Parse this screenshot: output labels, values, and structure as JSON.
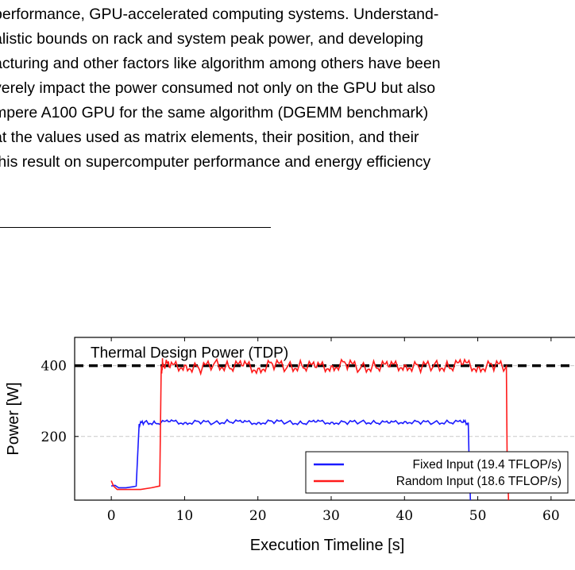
{
  "paper": {
    "lines": [
      "performance, GPU-accelerated computing systems. Understand-",
      "alistic bounds on rack and system peak power, and developing",
      "acturing and other factors like algorithm among others have been",
      "verely impact the power consumed not only on the GPU but also",
      "mpere A100 GPU for the same algorithm (DGEMM benchmark)",
      "at the values used as matrix elements, their position, and their",
      "this result on supercomputer performance and energy efficiency"
    ]
  },
  "chart_data": {
    "type": "line",
    "xlabel": "Execution Timeline [s]",
    "ylabel": "Power [W]",
    "xlim": [
      -5,
      65
    ],
    "ylim": [
      20,
      480
    ],
    "xticks": [
      0,
      10,
      20,
      30,
      40,
      50,
      60
    ],
    "yticks": [
      200,
      400
    ],
    "grid": "horizontal dashed at y ticks",
    "legend_position": "bottom-right",
    "annotations": [
      {
        "text": "Thermal Design Power (TDP)",
        "y": 400,
        "style": "black dashed line"
      }
    ],
    "series": [
      {
        "name": "Fixed Input (19.4 TFLOP/s)",
        "color": "#1a1aff",
        "x": [
          0.0,
          0.5,
          1.0,
          2.0,
          3.0,
          3.4,
          3.8,
          4.5,
          6.0,
          8.0,
          10.0,
          12.0,
          14.0,
          16.0,
          18.0,
          20.0,
          22.0,
          24.0,
          26.0,
          28.0,
          30.0,
          32.0,
          34.0,
          36.0,
          38.0,
          40.0,
          42.0,
          44.0,
          46.0,
          48.0,
          48.7,
          48.8,
          49.0
        ],
        "y": [
          60,
          62,
          55,
          55,
          58,
          60,
          235,
          240,
          238,
          242,
          239,
          241,
          238,
          243,
          240,
          239,
          242,
          240,
          238,
          241,
          240,
          239,
          241,
          240,
          238,
          242,
          240,
          239,
          241,
          240,
          239,
          150,
          20
        ]
      },
      {
        "name": "Random Input (18.6 TFLOP/s)",
        "color": "#ff1a1a",
        "x": [
          0.0,
          0.3,
          0.8,
          2.0,
          4.0,
          5.5,
          6.6,
          6.8,
          7.0,
          8.0,
          10.0,
          12.0,
          14.0,
          16.0,
          18.0,
          20.0,
          22.0,
          24.0,
          26.0,
          28.0,
          30.0,
          32.0,
          34.0,
          36.0,
          38.0,
          40.0,
          42.0,
          44.0,
          46.0,
          48.0,
          50.0,
          52.0,
          53.9,
          54.0,
          54.2
        ],
        "y": [
          75,
          60,
          50,
          50,
          50,
          55,
          60,
          380,
          410,
          395,
          402,
          390,
          405,
          398,
          400,
          392,
          404,
          396,
          401,
          395,
          399,
          405,
          393,
          400,
          397,
          402,
          395,
          401,
          398,
          404,
          396,
          400,
          398,
          150,
          20
        ]
      }
    ]
  }
}
